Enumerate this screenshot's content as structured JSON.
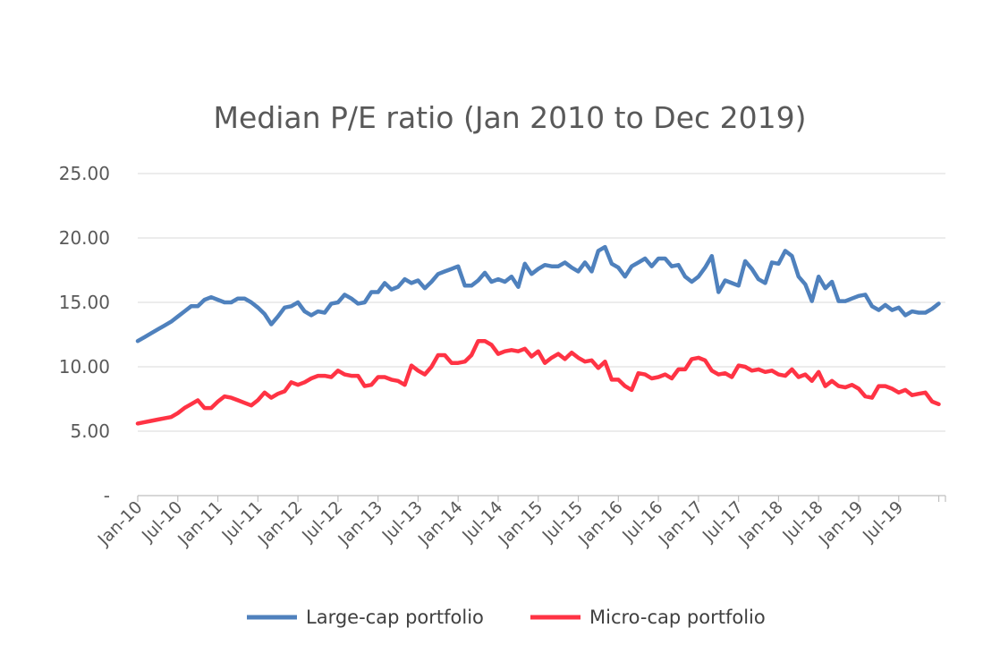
{
  "chart_data": {
    "type": "line",
    "title": "Median P/E ratio (Jan 2010 to Dec 2019)",
    "xlabel": "",
    "ylabel": "",
    "ylim": [
      0,
      25
    ],
    "y_ticks": [
      "-",
      "5.00",
      "10.00",
      "15.00",
      "20.00",
      "25.00"
    ],
    "y_tick_values": [
      0,
      5,
      10,
      15,
      20,
      25
    ],
    "x_tick_labels": [
      "Jan-10",
      "Jul-10",
      "Jan-11",
      "Jul-11",
      "Jan-12",
      "Jul-12",
      "Jan-13",
      "Jul-13",
      "Jan-14",
      "Jul-14",
      "Jan-15",
      "Jul-15",
      "Jan-16",
      "Jul-16",
      "Jan-17",
      "Jul-17",
      "Jan-18",
      "Jul-18",
      "Jan-19",
      "Jul-19"
    ],
    "x_start": "Jan-10",
    "x_end": "Dec-19",
    "grid": true,
    "legend_position": "bottom",
    "series": [
      {
        "name": "Large-cap portfolio",
        "color": "#4f81bd",
        "values": [
          12.0,
          12.3,
          12.6,
          12.9,
          13.2,
          13.5,
          13.9,
          14.3,
          14.7,
          14.7,
          15.2,
          15.4,
          15.2,
          15.0,
          15.0,
          15.3,
          15.3,
          15.0,
          14.6,
          14.1,
          13.3,
          13.9,
          14.6,
          14.7,
          15.0,
          14.3,
          14.0,
          14.3,
          14.2,
          14.9,
          15.0,
          15.6,
          15.3,
          14.9,
          15.0,
          15.8,
          15.8,
          16.5,
          16.0,
          16.2,
          16.8,
          16.5,
          16.7,
          16.1,
          16.6,
          17.2,
          17.4,
          17.6,
          17.8,
          16.3,
          16.3,
          16.7,
          17.3,
          16.6,
          16.8,
          16.6,
          17.0,
          16.2,
          18.0,
          17.2,
          17.6,
          17.9,
          17.8,
          17.8,
          18.1,
          17.7,
          17.4,
          18.1,
          17.4,
          19.0,
          19.3,
          18.0,
          17.7,
          17.0,
          17.8,
          18.1,
          18.4,
          17.8,
          18.4,
          18.4,
          17.8,
          17.9,
          17.0,
          16.6,
          17.0,
          17.7,
          18.6,
          15.8,
          16.7,
          16.5,
          16.3,
          18.2,
          17.6,
          16.8,
          16.5,
          18.1,
          18.0,
          19.0,
          18.6,
          17.0,
          16.4,
          15.1,
          17.0,
          16.1,
          16.6,
          15.1,
          15.1,
          15.3,
          15.5,
          15.6,
          14.7,
          14.4,
          14.8,
          14.4,
          14.6,
          14.0,
          14.3,
          14.2,
          14.2,
          14.5,
          14.9
        ]
      },
      {
        "name": "Micro-cap portfolio",
        "color": "#ff3344",
        "values": [
          5.6,
          5.7,
          5.8,
          5.9,
          6.0,
          6.1,
          6.4,
          6.8,
          7.1,
          7.4,
          6.8,
          6.8,
          7.3,
          7.7,
          7.6,
          7.4,
          7.2,
          7.0,
          7.4,
          8.0,
          7.6,
          7.9,
          8.1,
          8.8,
          8.6,
          8.8,
          9.1,
          9.3,
          9.3,
          9.2,
          9.7,
          9.4,
          9.3,
          9.3,
          8.5,
          8.6,
          9.2,
          9.2,
          9.0,
          8.9,
          8.6,
          10.1,
          9.7,
          9.4,
          10.0,
          10.9,
          10.9,
          10.3,
          10.3,
          10.4,
          10.9,
          12.0,
          12.0,
          11.7,
          11.0,
          11.2,
          11.3,
          11.2,
          11.4,
          10.8,
          11.2,
          10.3,
          10.7,
          11.0,
          10.6,
          11.1,
          10.7,
          10.4,
          10.5,
          9.9,
          10.4,
          9.0,
          9.0,
          8.5,
          8.2,
          9.5,
          9.4,
          9.1,
          9.2,
          9.4,
          9.1,
          9.8,
          9.8,
          10.6,
          10.7,
          10.5,
          9.7,
          9.4,
          9.5,
          9.2,
          10.1,
          10.0,
          9.7,
          9.8,
          9.6,
          9.7,
          9.4,
          9.3,
          9.8,
          9.2,
          9.4,
          8.9,
          9.6,
          8.5,
          8.9,
          8.5,
          8.4,
          8.6,
          8.3,
          7.7,
          7.6,
          8.5,
          8.5,
          8.3,
          8.0,
          8.2,
          7.8,
          7.9,
          8.0,
          7.3,
          7.1
        ]
      }
    ]
  }
}
